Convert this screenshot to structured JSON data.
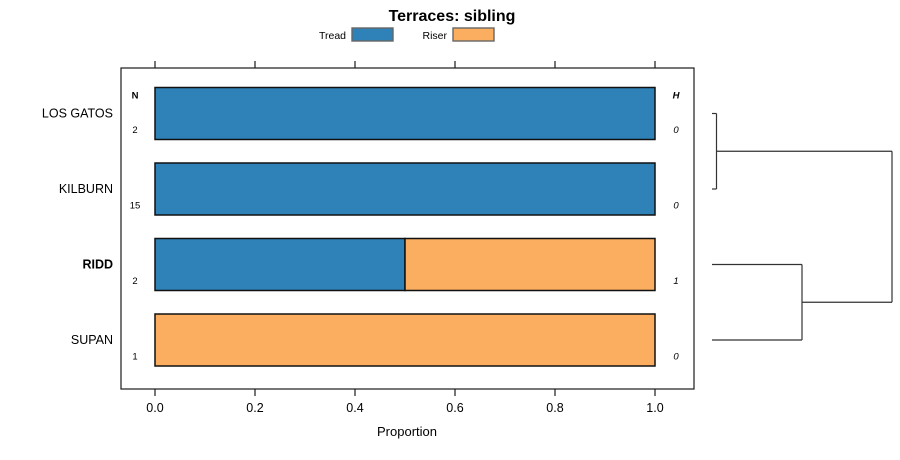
{
  "title": "Terraces: sibling",
  "legend": {
    "items": [
      {
        "label": "Tread",
        "color": "#2E82B8"
      },
      {
        "label": "Riser",
        "color": "#FBAD60"
      }
    ]
  },
  "chart_data": {
    "type": "bar",
    "orientation": "horizontal",
    "stacked": true,
    "title": "Terraces: sibling",
    "xlabel": "Proportion",
    "xlim": [
      0,
      1
    ],
    "xtick_labels": [
      "0.0",
      "0.2",
      "0.4",
      "0.6",
      "0.8",
      "1.0"
    ],
    "categories": [
      "LOS GATOS",
      "KILBURN",
      "RIDD",
      "SUPAN"
    ],
    "emphasized_category": "RIDD",
    "series": [
      {
        "name": "Tread",
        "color": "#2E82B8",
        "values": [
          1.0,
          1.0,
          0.5,
          0.0
        ]
      },
      {
        "name": "Riser",
        "color": "#FBAD60",
        "values": [
          0.0,
          0.0,
          0.5,
          1.0
        ]
      }
    ],
    "columns": {
      "n_header": "N",
      "h_header": "H"
    },
    "n_values": [
      2,
      15,
      2,
      1
    ],
    "h_values": [
      0,
      0,
      1,
      0
    ],
    "dendrogram": {
      "leaves": [
        "LOS GATOS",
        "KILBURN",
        "RIDD",
        "SUPAN"
      ],
      "merges": [
        {
          "children": [
            0,
            1
          ],
          "height": 0.025
        },
        {
          "children": [
            2,
            3
          ],
          "height": 0.5
        },
        {
          "children": [
            4,
            5
          ],
          "height": 1.0
        }
      ]
    },
    "grid": false,
    "legend_position": "top"
  }
}
